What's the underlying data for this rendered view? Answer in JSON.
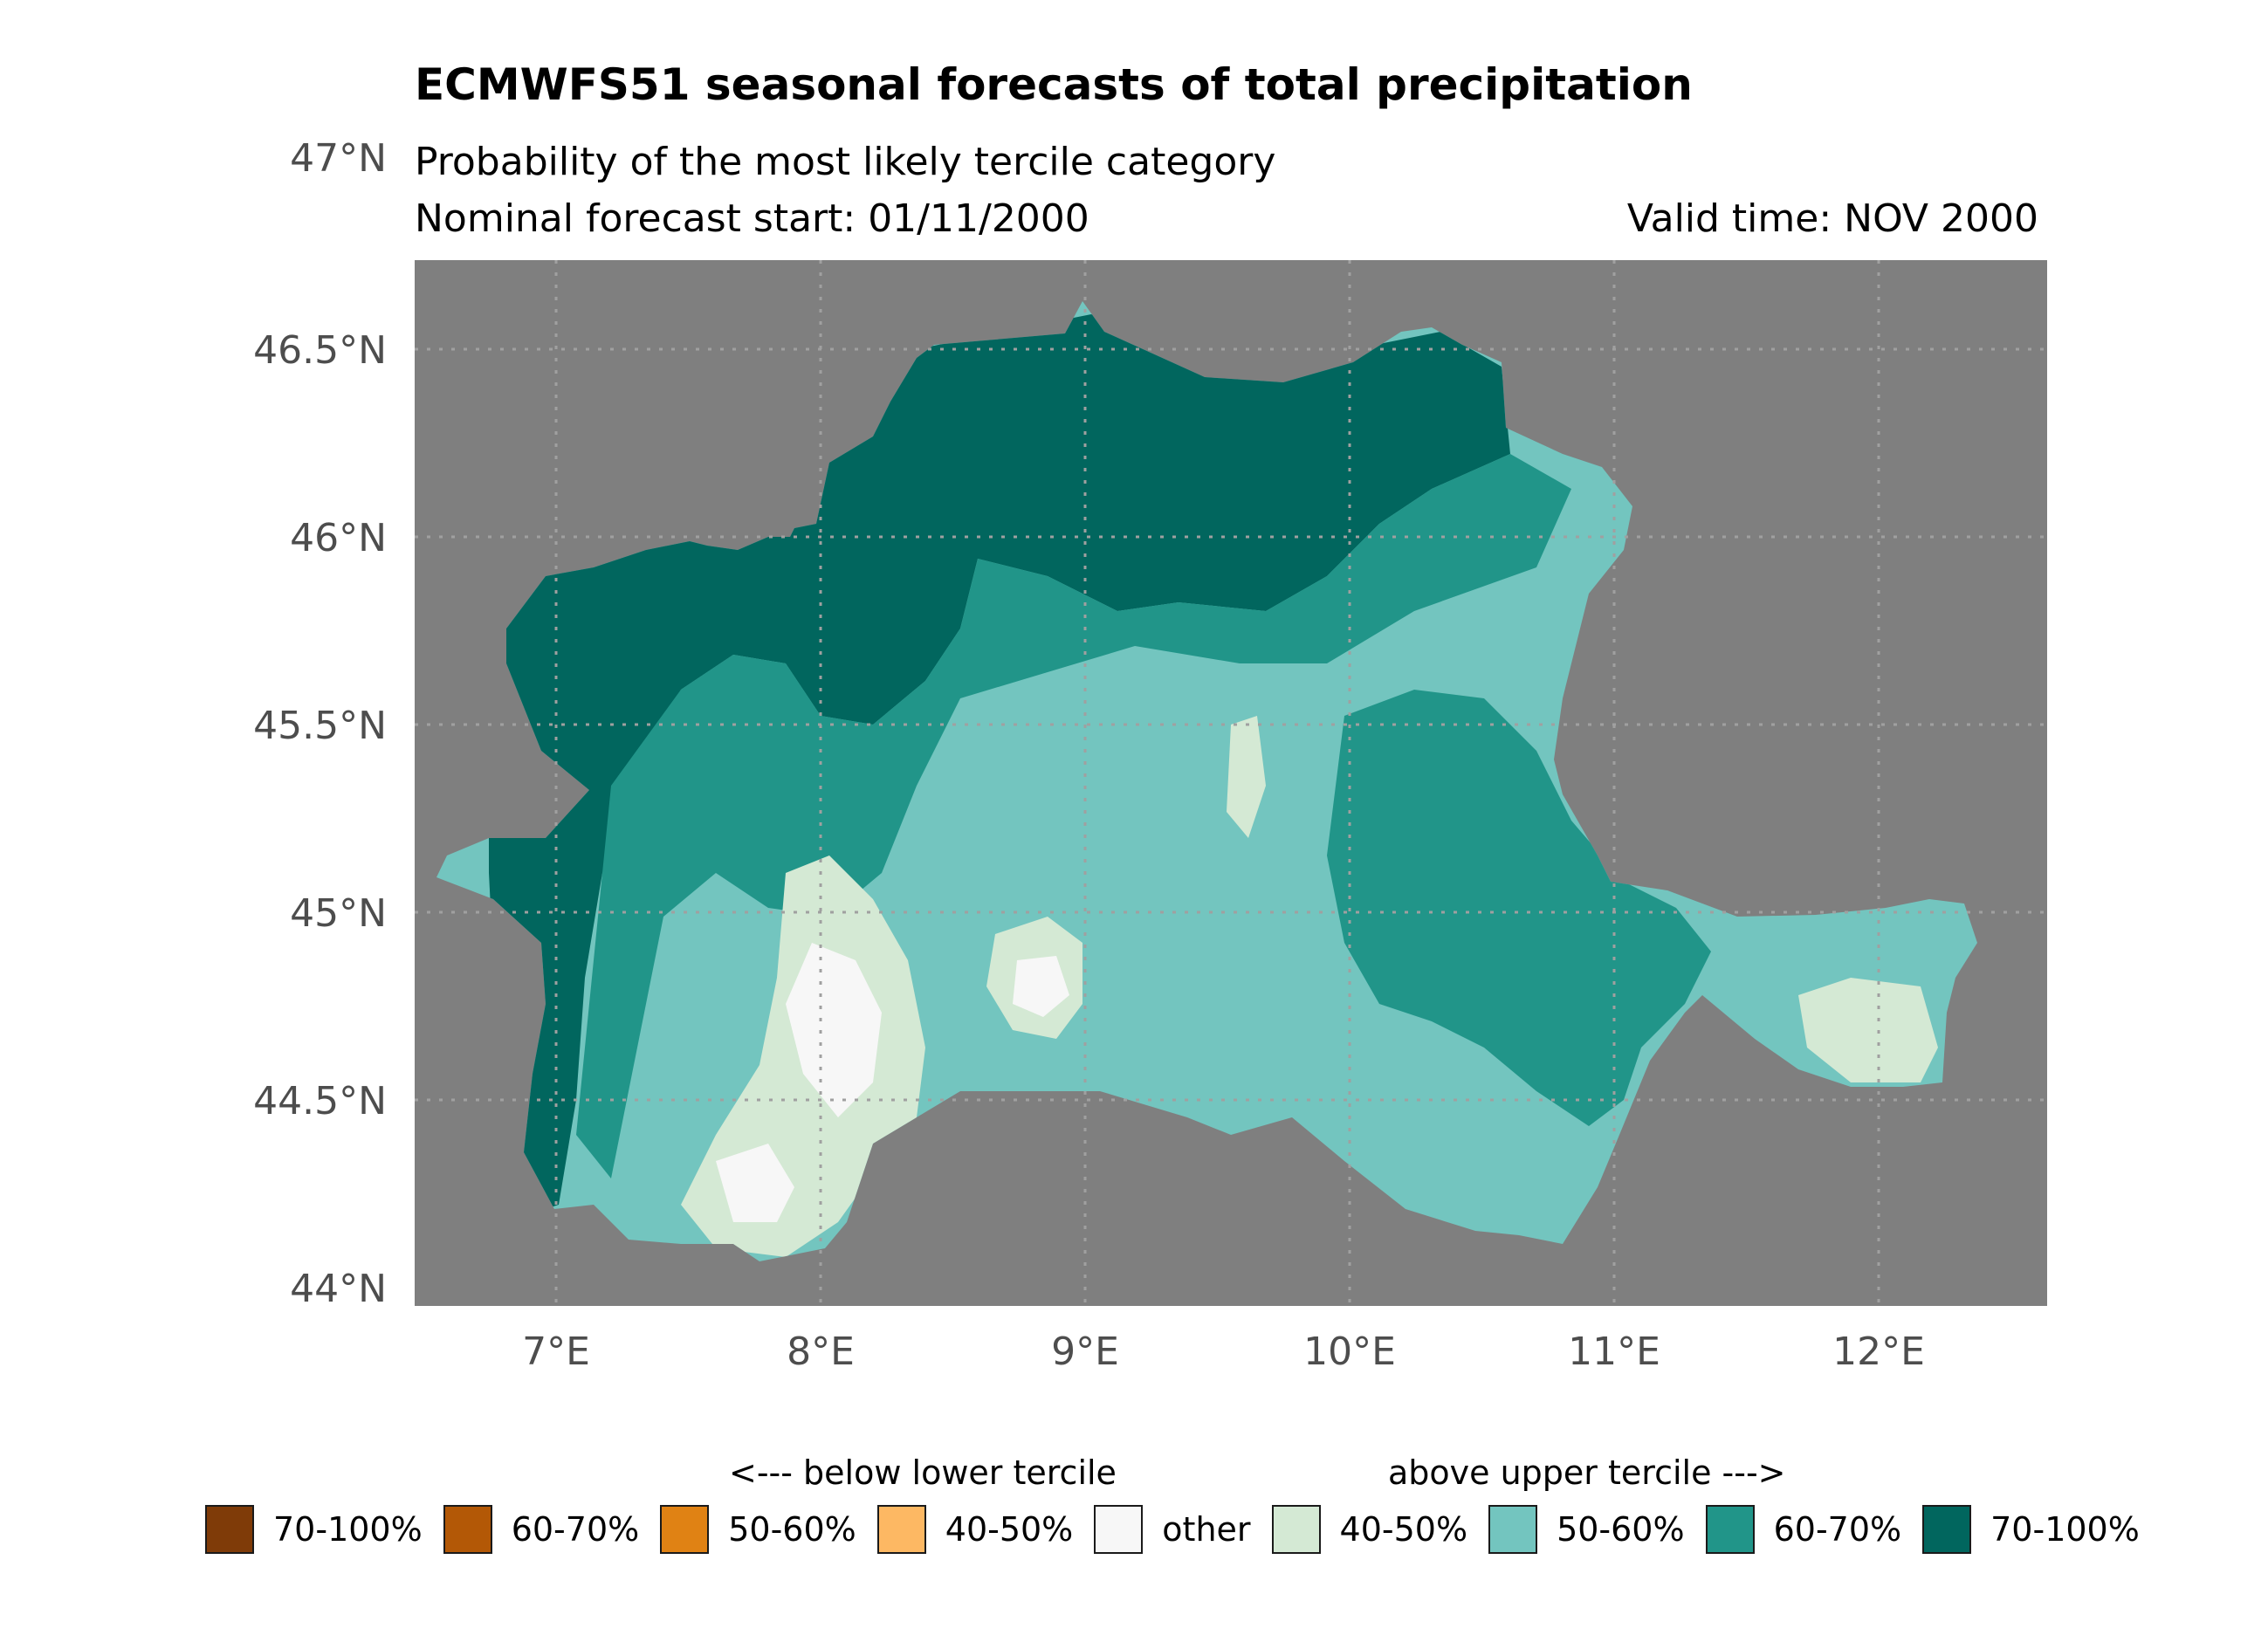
{
  "title": "ECMWFS51 seasonal forecasts of total precipitation",
  "subtitle": "Probability of the most likely tercile category",
  "forecast_start": "Nominal forecast start: 01/11/2000",
  "valid_time": "Valid time: NOV 2000",
  "axes": {
    "y_labels": [
      "47°N",
      "46.5°N",
      "46°N",
      "45.5°N",
      "45°N",
      "44.5°N",
      "44°N"
    ],
    "x_labels": [
      "7°E",
      "8°E",
      "9°E",
      "10°E",
      "11°E",
      "12°E"
    ]
  },
  "colors": {
    "background": "#7f7f7f",
    "grid": "#a0a0a0"
  },
  "legend": {
    "below_caption": "<--- below lower tercile",
    "above_caption": "above upper tercile --->",
    "items": [
      {
        "label": "70-100%",
        "color": "#7f3b08"
      },
      {
        "label": "60-70%",
        "color": "#b35806"
      },
      {
        "label": "50-60%",
        "color": "#e08214"
      },
      {
        "label": "40-50%",
        "color": "#fdb863"
      },
      {
        "label": "other",
        "color": "#f7f7f7"
      },
      {
        "label": "40-50%",
        "color": "#d4e9d4"
      },
      {
        "label": "50-60%",
        "color": "#73c5bf"
      },
      {
        "label": "60-70%",
        "color": "#219589"
      },
      {
        "label": "70-100%",
        "color": "#01665e"
      }
    ]
  }
}
